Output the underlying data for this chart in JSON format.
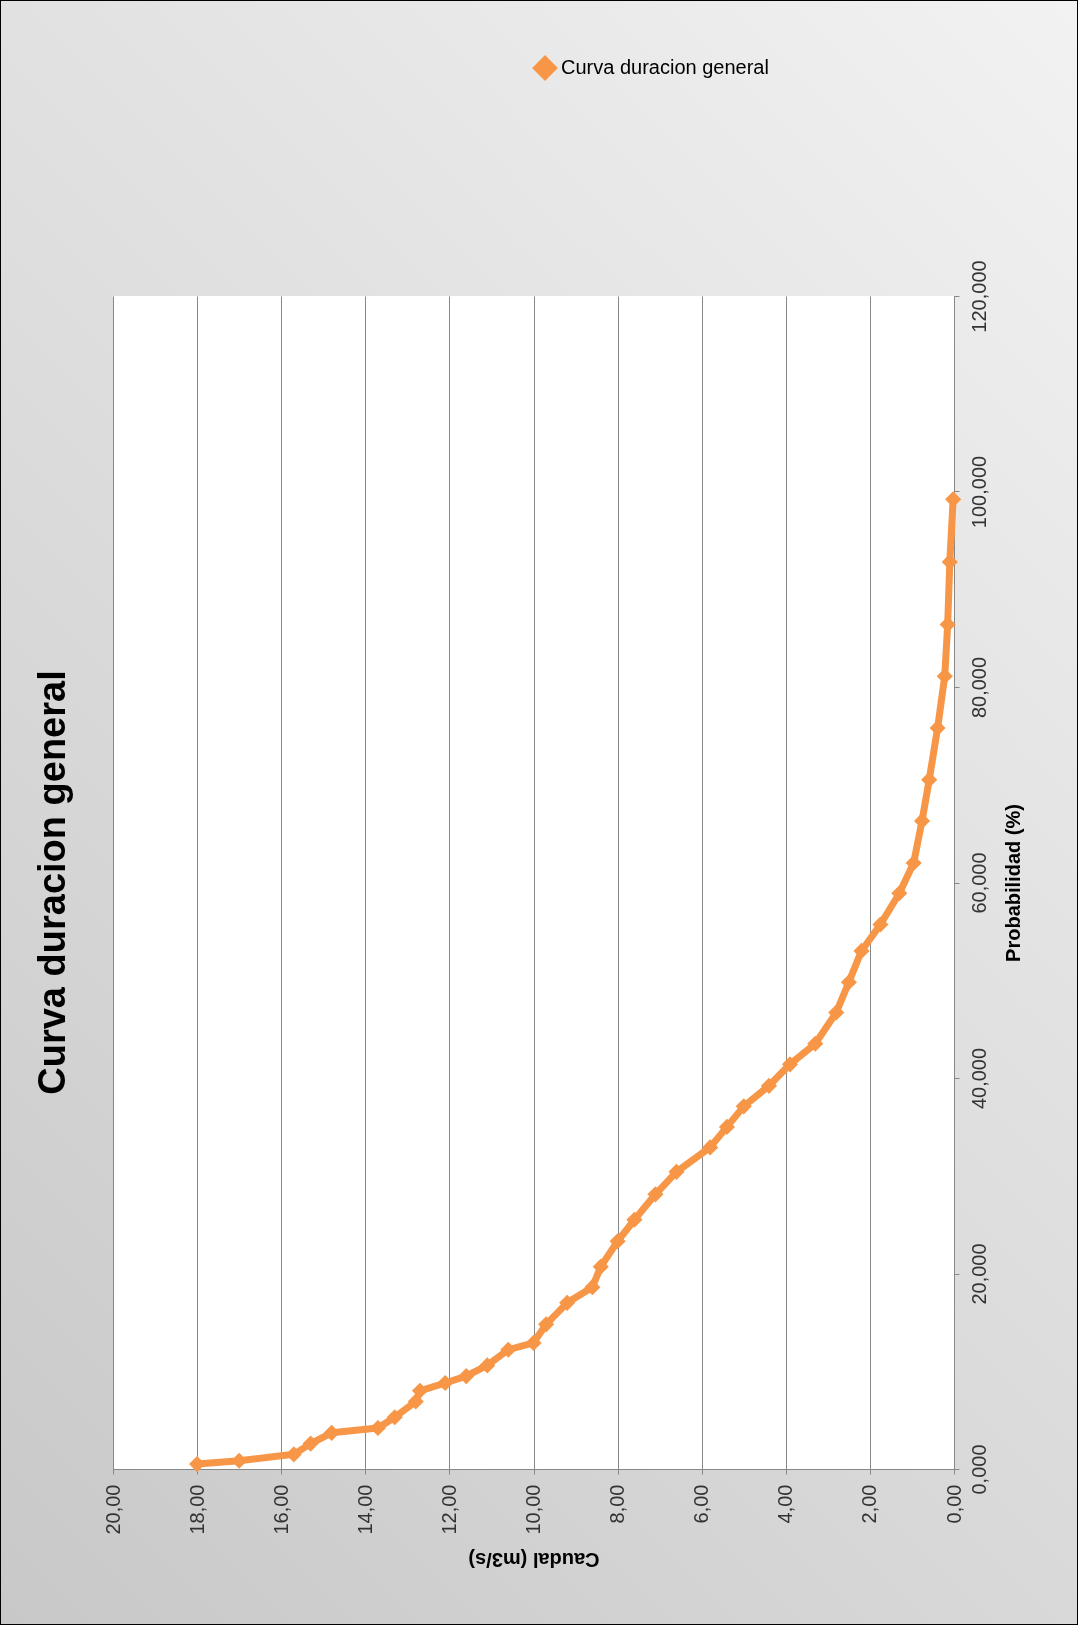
{
  "chart_data": {
    "type": "line",
    "title": "Curva duracion general",
    "xlabel": "Caudal (m3/s)",
    "ylabel": "Probabilidad (%)",
    "x": [
      18.0,
      17.0,
      15.7,
      15.3,
      14.8,
      13.7,
      13.3,
      12.8,
      12.7,
      12.1,
      11.6,
      11.1,
      10.6,
      10.0,
      9.7,
      9.2,
      8.6,
      8.4,
      8.0,
      7.6,
      7.1,
      6.6,
      5.8,
      5.4,
      5.0,
      4.4,
      3.9,
      3.3,
      2.8,
      2.5,
      2.2,
      1.75,
      1.3,
      0.96,
      0.76,
      0.59,
      0.39,
      0.22,
      0.15,
      0.1,
      0.02
    ],
    "series": [
      {
        "name": "Curva duracion general",
        "color": "#f79646",
        "values": [
          0.5,
          0.85,
          1.5,
          2.6,
          3.7,
          4.2,
          5.3,
          6.9,
          8.0,
          8.8,
          9.5,
          10.6,
          12.2,
          12.9,
          14.8,
          17.0,
          18.6,
          20.7,
          23.3,
          25.5,
          28.1,
          30.4,
          32.9,
          35.0,
          37.1,
          39.2,
          41.4,
          43.5,
          46.7,
          49.8,
          53.0,
          55.7,
          58.9,
          62.0,
          66.3,
          70.5,
          75.8,
          81.1,
          86.4,
          92.8,
          99.2
        ]
      }
    ],
    "xlim": [
      20,
      0
    ],
    "xticks": [
      {
        "value": 0,
        "label": "0,00"
      },
      {
        "value": 2,
        "label": "2,00"
      },
      {
        "value": 4,
        "label": "4,00"
      },
      {
        "value": 6,
        "label": "6,00"
      },
      {
        "value": 8,
        "label": "8,00"
      },
      {
        "value": 10,
        "label": "10,00"
      },
      {
        "value": 12,
        "label": "12,00"
      },
      {
        "value": 14,
        "label": "14,00"
      },
      {
        "value": 16,
        "label": "16,00"
      },
      {
        "value": 18,
        "label": "18,00"
      },
      {
        "value": 20,
        "label": "20,00"
      }
    ],
    "ylim": [
      0,
      120
    ],
    "yticks": [
      {
        "value": 0,
        "label": "0,000"
      },
      {
        "value": 20,
        "label": "20,000"
      },
      {
        "value": 40,
        "label": "40,000"
      },
      {
        "value": 60,
        "label": "60,000"
      },
      {
        "value": 80,
        "label": "80,000"
      },
      {
        "value": 100,
        "label": "100,000"
      },
      {
        "value": 120,
        "label": "120,000"
      }
    ],
    "grid": "x",
    "legend": "top right",
    "marker": "diamond",
    "line_style": "solid"
  }
}
